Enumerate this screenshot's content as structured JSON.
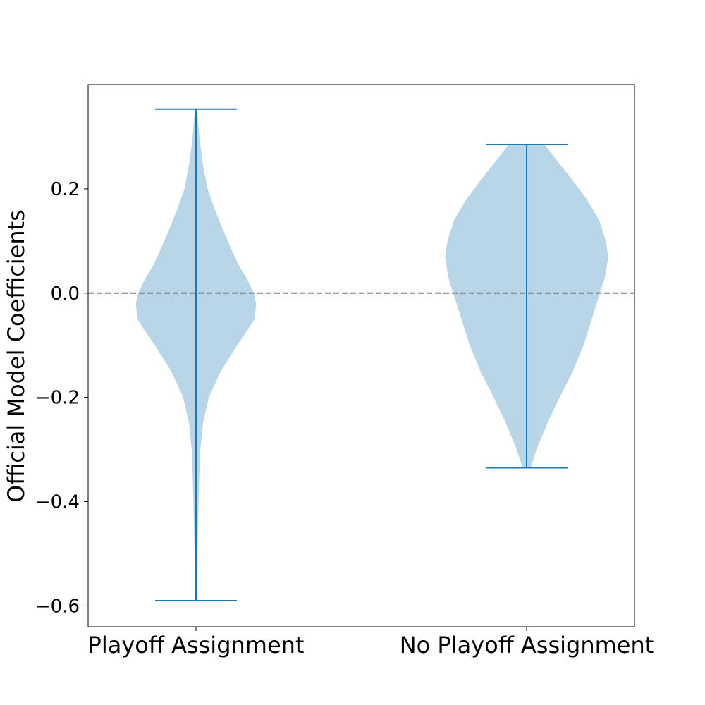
{
  "chart_data": {
    "type": "violin",
    "title": "",
    "xlabel": "",
    "ylabel": "Official Model Coefficients",
    "categories": [
      "Playoff Assignment",
      "No Playoff Assignment"
    ],
    "ylim": [
      -0.64,
      0.4
    ],
    "yticks": [
      -0.6,
      -0.4,
      -0.2,
      0.0,
      0.2
    ],
    "ytick_labels": [
      "−0.6",
      "−0.4",
      "−0.2",
      "0.0",
      "0.2"
    ],
    "reference_line": {
      "y": 0.0,
      "style": "dashed",
      "color": "#7f7f7f"
    },
    "grid": false,
    "colors": {
      "body": "#b9d5e8",
      "lines": "#1f77b4"
    },
    "series": [
      {
        "min": -0.59,
        "max": 0.353,
        "density_profile": [
          [
            -0.59,
            0.008
          ],
          [
            -0.55,
            0.012
          ],
          [
            -0.5,
            0.018
          ],
          [
            -0.45,
            0.025
          ],
          [
            -0.4,
            0.032
          ],
          [
            -0.35,
            0.04
          ],
          [
            -0.3,
            0.052
          ],
          [
            -0.25,
            0.085
          ],
          [
            -0.2,
            0.155
          ],
          [
            -0.15,
            0.3
          ],
          [
            -0.1,
            0.5
          ],
          [
            -0.05,
            0.71
          ],
          [
            -0.02,
            0.73
          ],
          [
            0.0,
            0.7
          ],
          [
            0.03,
            0.61
          ],
          [
            0.05,
            0.53
          ],
          [
            0.08,
            0.44
          ],
          [
            0.12,
            0.33
          ],
          [
            0.16,
            0.23
          ],
          [
            0.2,
            0.14
          ],
          [
            0.25,
            0.08
          ],
          [
            0.3,
            0.04
          ],
          [
            0.35,
            0.015
          ],
          [
            0.353,
            0.008
          ]
        ]
      },
      {
        "min": -0.335,
        "max": 0.285,
        "density_profile": [
          [
            -0.335,
            0.05
          ],
          [
            -0.32,
            0.08
          ],
          [
            -0.3,
            0.12
          ],
          [
            -0.25,
            0.25
          ],
          [
            -0.2,
            0.4
          ],
          [
            -0.15,
            0.56
          ],
          [
            -0.1,
            0.69
          ],
          [
            -0.05,
            0.79
          ],
          [
            0.0,
            0.89
          ],
          [
            0.03,
            0.95
          ],
          [
            0.07,
            0.99
          ],
          [
            0.1,
            0.96
          ],
          [
            0.14,
            0.88
          ],
          [
            0.18,
            0.73
          ],
          [
            0.22,
            0.54
          ],
          [
            0.26,
            0.34
          ],
          [
            0.285,
            0.22
          ]
        ]
      }
    ]
  }
}
